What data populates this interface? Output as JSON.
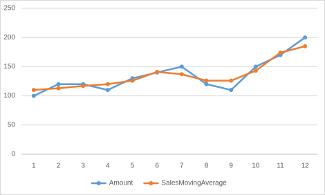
{
  "chart_data": {
    "type": "line",
    "categories": [
      "1",
      "2",
      "3",
      "4",
      "5",
      "6",
      "7",
      "8",
      "9",
      "10",
      "11",
      "12"
    ],
    "series": [
      {
        "name": "Amount",
        "color": "#5b9bd5",
        "values": [
          100,
          120,
          120,
          110,
          130,
          140,
          150,
          120,
          110,
          150,
          170,
          200
        ]
      },
      {
        "name": "SalesMovingAverage",
        "color": "#ed7d31",
        "values": [
          110,
          113,
          117,
          120,
          126,
          141,
          137,
          126,
          126,
          143,
          174,
          185
        ]
      }
    ],
    "ylim": [
      0,
      250
    ],
    "yticks": [
      0,
      50,
      100,
      150,
      200,
      250
    ],
    "grid": true,
    "legend": "bottom"
  }
}
